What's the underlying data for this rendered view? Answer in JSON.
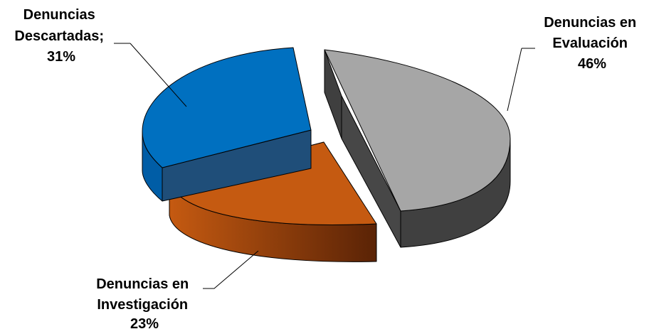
{
  "chart_data": {
    "type": "pie",
    "title": "",
    "slices": [
      {
        "name": "Denuncias en Evaluación",
        "value": 46,
        "label_lines": [
          "Denuncias en",
          "Evaluación",
          "46%"
        ],
        "top_color": "#a6a6a6",
        "side_color": "#404040"
      },
      {
        "name": "Denuncias en Investigación",
        "value": 23,
        "label_lines": [
          "Denuncias en",
          "Investigación",
          "23%"
        ],
        "top_color": "#c55a11",
        "side_color": "#843c0c"
      },
      {
        "name": "Denuncias Descartadas",
        "value": 31,
        "label_lines": [
          "Denuncias",
          "Descartadas;",
          "31%"
        ],
        "top_color": "#0070c0",
        "side_color": "#1f4e79"
      }
    ],
    "legend": "none",
    "exploded": true,
    "three_d": true
  }
}
